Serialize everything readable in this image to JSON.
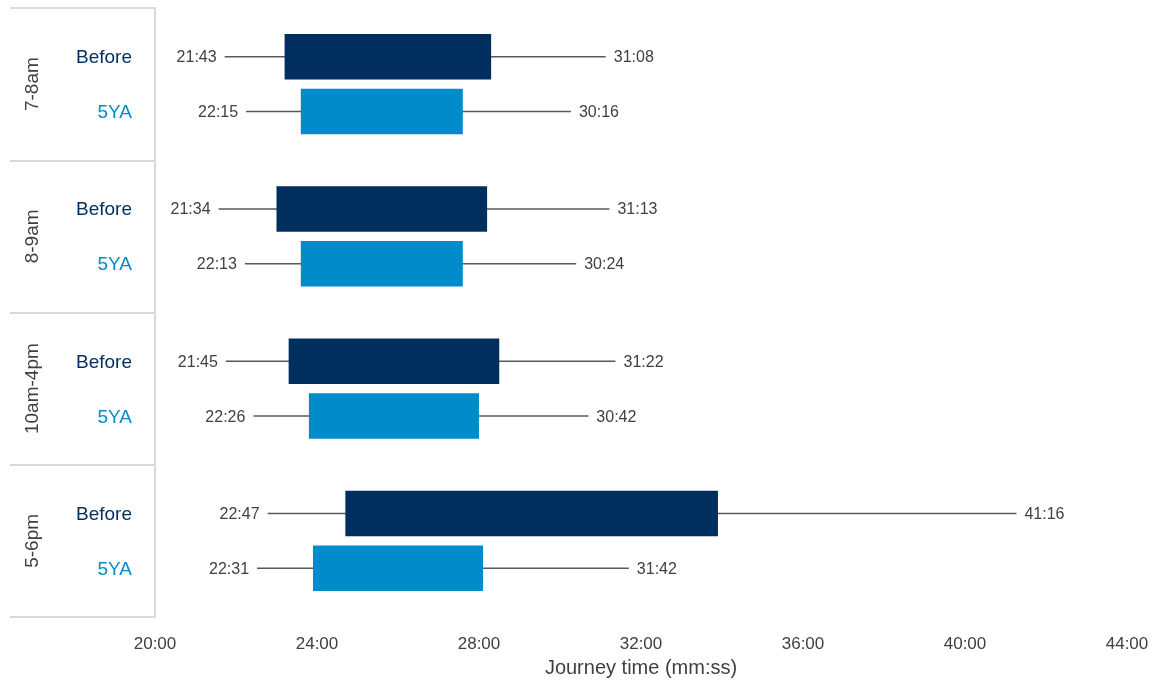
{
  "chart_data": {
    "type": "bar",
    "orientation": "horizontal",
    "xlabel": "Journey time (mm:ss)",
    "categories": [
      "7-8am",
      "8-9am",
      "10am-4pm",
      "5-6pm"
    ],
    "series": [
      {
        "name": "Before",
        "color": "#002f5f",
        "base": [
          23.2,
          23.0,
          23.3,
          24.7
        ],
        "values": [
          5.1,
          5.2,
          5.2,
          9.2
        ],
        "errors": [
          [
            21.72,
            31.13
          ],
          [
            21.57,
            31.22
          ],
          [
            21.75,
            31.37
          ],
          [
            22.78,
            41.27
          ]
        ]
      },
      {
        "name": "5YA",
        "color": "#008bca",
        "base": [
          23.6,
          23.6,
          23.8,
          23.9
        ],
        "values": [
          4.0,
          4.0,
          4.2,
          4.2
        ],
        "errors": [
          [
            22.25,
            30.27
          ],
          [
            22.22,
            30.4
          ],
          [
            22.43,
            30.7
          ],
          [
            22.52,
            31.7
          ]
        ]
      }
    ],
    "xlim": [
      20,
      44
    ],
    "xticks": [
      {
        "value": 20,
        "label": "20:00"
      },
      {
        "value": 24,
        "label": "24:00"
      },
      {
        "value": 28,
        "label": "28:00"
      },
      {
        "value": 32,
        "label": "32:00"
      },
      {
        "value": 36,
        "label": "36:00"
      },
      {
        "value": 40,
        "label": "40:00"
      },
      {
        "value": 44,
        "label": "44:00"
      }
    ],
    "annotations": [
      "21:43",
      "31:08",
      "22:15",
      "30:16",
      "21:34",
      "31:13",
      "22:13",
      "30:24",
      "21:45",
      "31:22",
      "22:26",
      "30:42",
      "22:47",
      "41:16",
      "22:31",
      "31:42"
    ],
    "grid": false,
    "legend": false
  }
}
